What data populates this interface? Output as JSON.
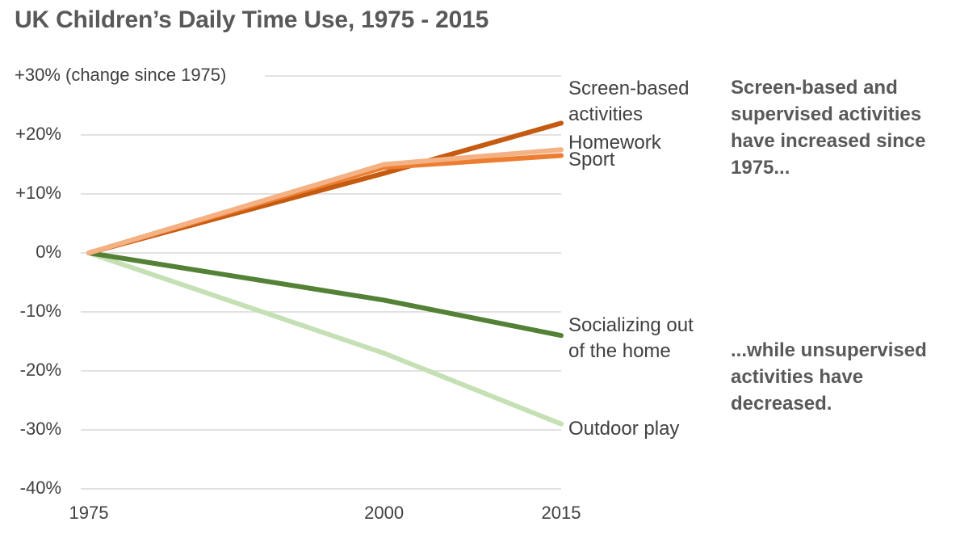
{
  "chart_data": {
    "type": "line",
    "title": "UK Children’s Daily Time Use, 1975 - 2015",
    "x": [
      1975,
      2000,
      2015
    ],
    "x_tick_labels": [
      "1975",
      "2000",
      "2015"
    ],
    "ylim": [
      -40,
      30
    ],
    "y_ticks": [
      {
        "value": 30,
        "label": "+30% (change since 1975)"
      },
      {
        "value": 20,
        "label": "+20%"
      },
      {
        "value": 10,
        "label": "+10%"
      },
      {
        "value": 0,
        "label": "0%"
      },
      {
        "value": -10,
        "label": "-10%"
      },
      {
        "value": -20,
        "label": "-20%"
      },
      {
        "value": -30,
        "label": "-30%"
      },
      {
        "value": -40,
        "label": "-40%"
      }
    ],
    "grid": true,
    "series": [
      {
        "name": "Screen-based activities",
        "label_lines": [
          "Screen-based",
          "activities"
        ],
        "values": [
          0,
          13.5,
          22
        ],
        "color": "#c55a11"
      },
      {
        "name": "Homework",
        "label_lines": [
          "Homework"
        ],
        "values": [
          0,
          15,
          17.5
        ],
        "color": "#f4b183"
      },
      {
        "name": "Sport",
        "label_lines": [
          "Sport"
        ],
        "values": [
          0,
          14.5,
          16.5
        ],
        "color": "#ed7d31"
      },
      {
        "name": "Socializing out of the home",
        "label_lines": [
          "Socializing out",
          "of the home"
        ],
        "values": [
          0,
          -8,
          -14
        ],
        "color": "#538135"
      },
      {
        "name": "Outdoor play",
        "label_lines": [
          "Outdoor play"
        ],
        "values": [
          0,
          -17,
          -29
        ],
        "color": "#c5e0b4"
      }
    ],
    "annotations": [
      "Screen-based and supervised activities have increased since 1975...",
      "...while unsupervised activities have decreased."
    ]
  }
}
